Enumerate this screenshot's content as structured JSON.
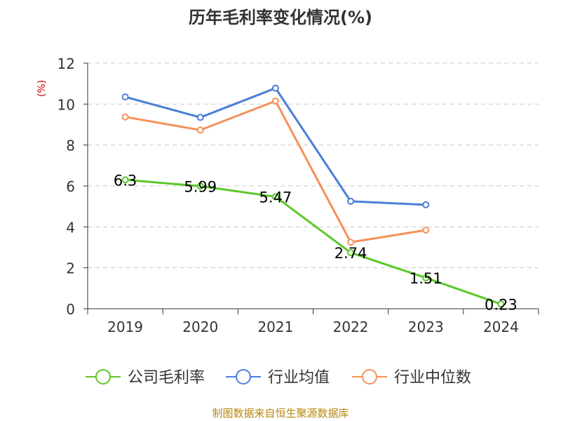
{
  "chart_data": {
    "type": "line",
    "title": "历年毛利率变化情况(%)",
    "ylabel": "(%)",
    "categories": [
      "2019",
      "2020",
      "2021",
      "2022",
      "2023",
      "2024"
    ],
    "ylim": [
      0,
      12
    ],
    "yticks": [
      0,
      2,
      4,
      6,
      8,
      10,
      12
    ],
    "grid": true,
    "legend_position": "bottom",
    "series": [
      {
        "name": "公司毛利率",
        "color": "#5bc82a",
        "values": [
          6.3,
          5.99,
          5.47,
          2.74,
          1.51,
          0.23
        ],
        "labels": [
          "6.3",
          "5.99",
          "5.47",
          "2.74",
          "1.51",
          "0.23"
        ]
      },
      {
        "name": "行业均值",
        "color": "#4a7fd6",
        "values": [
          10.35,
          9.35,
          10.78,
          5.25,
          5.08,
          null
        ]
      },
      {
        "name": "行业中位数",
        "color": "#f5905a",
        "values": [
          9.37,
          8.73,
          10.15,
          3.25,
          3.84,
          null
        ]
      }
    ]
  },
  "source": "制图数据来自恒生聚源数据库"
}
